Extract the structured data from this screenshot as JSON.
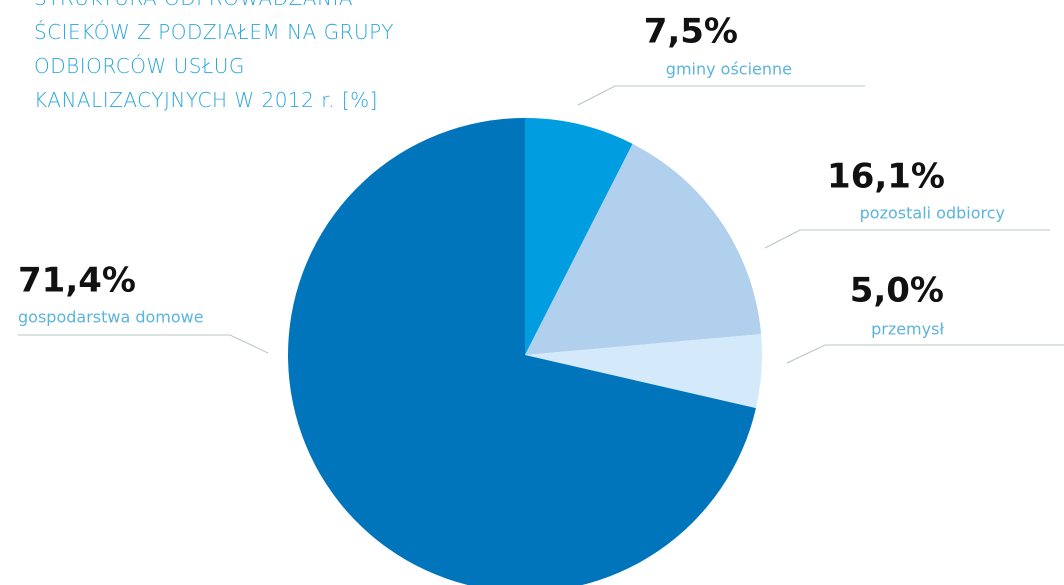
{
  "chart_data": {
    "type": "pie",
    "title": "STRUKTURA ODPROWADZANIA ŚCIEKÓW Z PODZIAŁEM NA GRUPY ODBIORCÓW USŁUG KANALIZACYJNYCH W 2012 r. [%]",
    "categories": [
      "gminy ościenne",
      "pozostali odbiorcy",
      "przemysł",
      "gospodarstwa domowe"
    ],
    "values": [
      7.5,
      16.1,
      5.0,
      71.4
    ],
    "value_labels": [
      "7,5%",
      "16,1%",
      "5,0%",
      "71,4%"
    ],
    "colors": [
      "#009ee0",
      "#b0d0ee",
      "#d4eafa",
      "#0075bc"
    ]
  }
}
